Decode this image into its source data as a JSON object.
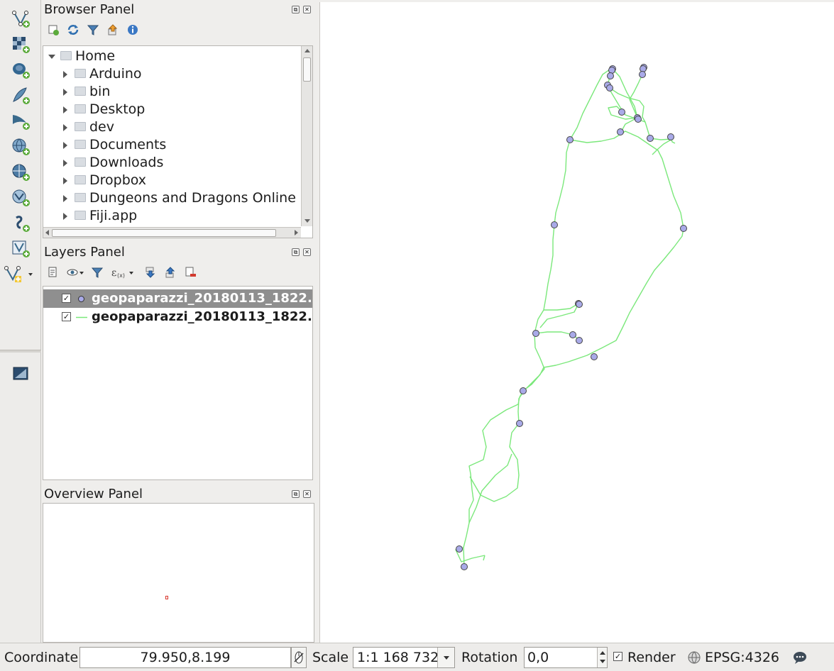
{
  "toolbar": {
    "buttons": [
      {
        "icon": "add-vector-layer-icon"
      },
      {
        "icon": "add-raster-layer-icon"
      },
      {
        "icon": "add-postgis-layer-icon"
      },
      {
        "icon": "add-spatialite-layer-icon"
      },
      {
        "icon": "add-mssql-layer-icon"
      },
      {
        "icon": "add-wms-layer-icon"
      },
      {
        "icon": "add-wcs-layer-icon"
      },
      {
        "icon": "add-wfs-layer-icon"
      },
      {
        "icon": "add-delimited-text-layer-icon"
      },
      {
        "icon": "add-virtual-layer-icon"
      },
      {
        "icon": "new-vector-layer-icon"
      }
    ],
    "secondary": [
      {
        "icon": "map-window-icon"
      }
    ]
  },
  "browser_panel": {
    "title": "Browser Panel",
    "tools": [
      "add-selected-icon",
      "refresh-icon",
      "filter-icon",
      "collapse-all-icon",
      "properties-icon"
    ],
    "tree": {
      "root": "Home",
      "items": [
        {
          "label": "Arduino"
        },
        {
          "label": "bin"
        },
        {
          "label": "Desktop"
        },
        {
          "label": "dev"
        },
        {
          "label": "Documents"
        },
        {
          "label": "Downloads"
        },
        {
          "label": "Dropbox"
        },
        {
          "label": "Dungeons and Dragons Online"
        },
        {
          "label": "Fiji.app"
        }
      ]
    }
  },
  "layers_panel": {
    "title": "Layers Panel",
    "tools": [
      "open-layer-styling-icon",
      "manage-visibility-icon",
      "filter-legend-icon",
      "filter-expression-icon",
      "expand-all-icon",
      "collapse-all-icon",
      "remove-layer-icon"
    ],
    "layers": [
      {
        "name": "geopaparazzi_20180113_1822...",
        "checked": true,
        "symbol": "point",
        "selected": true
      },
      {
        "name": "geopaparazzi_20180113_1822...",
        "checked": true,
        "symbol": "line",
        "selected": false
      }
    ]
  },
  "overview_panel": {
    "title": "Overview Panel"
  },
  "map": {
    "track_color": "#7be87b",
    "point_color": "#a9aae8",
    "point_stroke": "#454545"
  },
  "statusbar": {
    "coordinate_label": "Coordinate",
    "coordinate_value": "79.950,8.199",
    "scale_label": "Scale",
    "scale_value": "1:1 168 732",
    "rotation_label": "Rotation",
    "rotation_value": "0,0",
    "render_label": "Render",
    "render_checked": true,
    "crs_label": "EPSG:4326"
  }
}
